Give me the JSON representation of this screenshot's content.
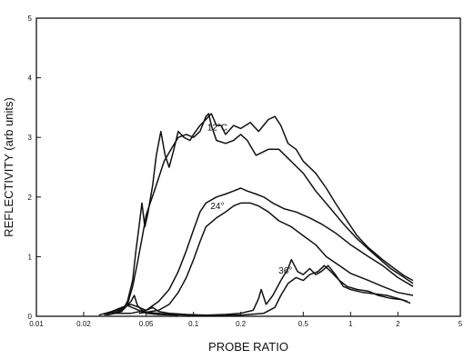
{
  "chart_data": {
    "type": "line",
    "xlabel": "PROBE RATIO",
    "ylabel": "REFLECTIVITY  (arb units)",
    "xscale": "log",
    "xlim": [
      0.01,
      5
    ],
    "ylim": [
      0,
      5
    ],
    "grid": false,
    "x_ticks": [
      {
        "value": 0.01,
        "label": "0.01"
      },
      {
        "value": 0.02,
        "label": "0.02"
      },
      {
        "value": 0.05,
        "label": "0.05"
      },
      {
        "value": 0.1,
        "label": "0.1"
      },
      {
        "value": 0.2,
        "label": "0.2"
      },
      {
        "value": 0.5,
        "label": "0.5"
      },
      {
        "value": 1,
        "label": "1"
      },
      {
        "value": 2,
        "label": "2"
      },
      {
        "value": 5,
        "label": "5"
      }
    ],
    "y_ticks": [
      {
        "value": 0,
        "label": "0"
      },
      {
        "value": 1,
        "label": "1"
      },
      {
        "value": 2,
        "label": "2"
      },
      {
        "value": 3,
        "label": "3"
      },
      {
        "value": 4,
        "label": "4"
      },
      {
        "value": 5,
        "label": "5"
      }
    ],
    "annotations": [
      {
        "text": "12°C",
        "x": 0.142,
        "y": 3.12
      },
      {
        "text": "24°",
        "x": 0.142,
        "y": 1.8
      },
      {
        "text": "36°",
        "x": 0.385,
        "y": 0.72
      }
    ],
    "series": [
      {
        "points": [
          [
            0.03,
            0.05
          ],
          [
            0.035,
            0.08
          ],
          [
            0.038,
            0.25
          ],
          [
            0.041,
            0.6
          ],
          [
            0.043,
            1.1
          ],
          [
            0.045,
            1.5
          ],
          [
            0.047,
            1.9
          ],
          [
            0.049,
            1.5
          ],
          [
            0.051,
            1.7
          ],
          [
            0.055,
            2.2
          ],
          [
            0.058,
            2.7
          ],
          [
            0.062,
            3.1
          ],
          [
            0.066,
            2.7
          ],
          [
            0.07,
            2.5
          ],
          [
            0.075,
            2.8
          ],
          [
            0.08,
            3.1
          ],
          [
            0.087,
            3.0
          ],
          [
            0.095,
            2.95
          ],
          [
            0.1,
            3.05
          ],
          [
            0.11,
            3.2
          ],
          [
            0.12,
            3.3
          ],
          [
            0.13,
            3.4
          ],
          [
            0.14,
            3.2
          ],
          [
            0.15,
            3.2
          ],
          [
            0.16,
            3.05
          ],
          [
            0.18,
            3.2
          ],
          [
            0.2,
            3.15
          ],
          [
            0.23,
            3.25
          ],
          [
            0.26,
            3.1
          ],
          [
            0.3,
            3.3
          ],
          [
            0.33,
            3.35
          ],
          [
            0.36,
            3.2
          ],
          [
            0.4,
            2.9
          ],
          [
            0.45,
            2.8
          ],
          [
            0.5,
            2.6
          ],
          [
            0.6,
            2.4
          ],
          [
            0.7,
            2.15
          ],
          [
            0.8,
            1.9
          ],
          [
            0.95,
            1.6
          ],
          [
            1.1,
            1.35
          ],
          [
            1.3,
            1.15
          ],
          [
            1.6,
            0.95
          ],
          [
            1.9,
            0.8
          ],
          [
            2.2,
            0.68
          ],
          [
            2.5,
            0.6
          ]
        ]
      },
      {
        "points": [
          [
            0.032,
            0.05
          ],
          [
            0.038,
            0.2
          ],
          [
            0.041,
            0.5
          ],
          [
            0.044,
            0.9
          ],
          [
            0.047,
            1.3
          ],
          [
            0.05,
            1.7
          ],
          [
            0.053,
            1.9
          ],
          [
            0.058,
            2.2
          ],
          [
            0.065,
            2.6
          ],
          [
            0.072,
            2.8
          ],
          [
            0.08,
            3.0
          ],
          [
            0.09,
            3.05
          ],
          [
            0.1,
            3.0
          ],
          [
            0.11,
            3.1
          ],
          [
            0.12,
            3.35
          ],
          [
            0.125,
            3.4
          ],
          [
            0.13,
            3.2
          ],
          [
            0.14,
            2.95
          ],
          [
            0.16,
            2.9
          ],
          [
            0.18,
            2.95
          ],
          [
            0.2,
            3.05
          ],
          [
            0.22,
            2.95
          ],
          [
            0.25,
            2.7
          ],
          [
            0.3,
            2.8
          ],
          [
            0.35,
            2.8
          ],
          [
            0.4,
            2.65
          ],
          [
            0.5,
            2.4
          ],
          [
            0.6,
            2.1
          ],
          [
            0.75,
            1.8
          ],
          [
            0.9,
            1.55
          ],
          [
            1.1,
            1.3
          ],
          [
            1.4,
            1.05
          ],
          [
            1.8,
            0.8
          ],
          [
            2.2,
            0.65
          ],
          [
            2.5,
            0.55
          ]
        ]
      },
      {
        "points": [
          [
            0.03,
            0.05
          ],
          [
            0.04,
            0.05
          ],
          [
            0.05,
            0.1
          ],
          [
            0.06,
            0.25
          ],
          [
            0.07,
            0.45
          ],
          [
            0.08,
            0.75
          ],
          [
            0.09,
            1.1
          ],
          [
            0.1,
            1.45
          ],
          [
            0.11,
            1.75
          ],
          [
            0.12,
            1.9
          ],
          [
            0.14,
            2.0
          ],
          [
            0.16,
            2.05
          ],
          [
            0.18,
            2.1
          ],
          [
            0.2,
            2.15
          ],
          [
            0.22,
            2.1
          ],
          [
            0.25,
            2.05
          ],
          [
            0.28,
            2.0
          ],
          [
            0.32,
            1.9
          ],
          [
            0.38,
            1.8
          ],
          [
            0.45,
            1.75
          ],
          [
            0.55,
            1.65
          ],
          [
            0.65,
            1.55
          ],
          [
            0.8,
            1.4
          ],
          [
            1.0,
            1.2
          ],
          [
            1.3,
            1.0
          ],
          [
            1.6,
            0.85
          ],
          [
            2.0,
            0.65
          ],
          [
            2.5,
            0.5
          ]
        ]
      },
      {
        "points": [
          [
            0.045,
            0.05
          ],
          [
            0.06,
            0.1
          ],
          [
            0.07,
            0.2
          ],
          [
            0.08,
            0.4
          ],
          [
            0.09,
            0.65
          ],
          [
            0.1,
            0.95
          ],
          [
            0.11,
            1.25
          ],
          [
            0.12,
            1.5
          ],
          [
            0.14,
            1.65
          ],
          [
            0.16,
            1.75
          ],
          [
            0.18,
            1.85
          ],
          [
            0.2,
            1.9
          ],
          [
            0.23,
            1.9
          ],
          [
            0.26,
            1.85
          ],
          [
            0.3,
            1.75
          ],
          [
            0.35,
            1.6
          ],
          [
            0.42,
            1.5
          ],
          [
            0.5,
            1.35
          ],
          [
            0.6,
            1.2
          ],
          [
            0.7,
            1.0
          ],
          [
            0.85,
            0.85
          ],
          [
            1.0,
            0.72
          ],
          [
            1.3,
            0.6
          ],
          [
            1.6,
            0.5
          ],
          [
            2.0,
            0.4
          ],
          [
            2.5,
            0.35
          ]
        ]
      },
      {
        "points": [
          [
            0.12,
            0.02
          ],
          [
            0.16,
            0.03
          ],
          [
            0.2,
            0.05
          ],
          [
            0.24,
            0.1
          ],
          [
            0.26,
            0.3
          ],
          [
            0.27,
            0.45
          ],
          [
            0.29,
            0.2
          ],
          [
            0.32,
            0.35
          ],
          [
            0.36,
            0.6
          ],
          [
            0.4,
            0.8
          ],
          [
            0.42,
            0.95
          ],
          [
            0.46,
            0.75
          ],
          [
            0.5,
            0.7
          ],
          [
            0.55,
            0.8
          ],
          [
            0.6,
            0.7
          ],
          [
            0.65,
            0.75
          ],
          [
            0.72,
            0.85
          ],
          [
            0.8,
            0.7
          ],
          [
            0.9,
            0.5
          ],
          [
            1.0,
            0.45
          ],
          [
            1.2,
            0.4
          ],
          [
            1.4,
            0.38
          ],
          [
            1.7,
            0.35
          ],
          [
            2.0,
            0.3
          ],
          [
            2.3,
            0.25
          ]
        ]
      },
      {
        "points": [
          [
            0.2,
            0.02
          ],
          [
            0.28,
            0.05
          ],
          [
            0.33,
            0.15
          ],
          [
            0.36,
            0.35
          ],
          [
            0.4,
            0.55
          ],
          [
            0.45,
            0.65
          ],
          [
            0.5,
            0.6
          ],
          [
            0.55,
            0.7
          ],
          [
            0.62,
            0.75
          ],
          [
            0.68,
            0.85
          ],
          [
            0.75,
            0.75
          ],
          [
            0.85,
            0.6
          ],
          [
            0.95,
            0.5
          ],
          [
            1.1,
            0.45
          ],
          [
            1.3,
            0.42
          ],
          [
            1.5,
            0.35
          ],
          [
            1.8,
            0.3
          ],
          [
            2.1,
            0.28
          ],
          [
            2.4,
            0.22
          ]
        ]
      },
      {
        "points": [
          [
            0.025,
            0.02
          ],
          [
            0.03,
            0.08
          ],
          [
            0.035,
            0.15
          ],
          [
            0.04,
            0.2
          ],
          [
            0.045,
            0.15
          ],
          [
            0.05,
            0.1
          ],
          [
            0.055,
            0.15
          ],
          [
            0.06,
            0.08
          ],
          [
            0.07,
            0.05
          ],
          [
            0.09,
            0.03
          ],
          [
            0.12,
            0.02
          ],
          [
            0.2,
            0.02
          ]
        ]
      },
      {
        "points": [
          [
            0.028,
            0.02
          ],
          [
            0.032,
            0.05
          ],
          [
            0.036,
            0.12
          ],
          [
            0.04,
            0.25
          ],
          [
            0.042,
            0.35
          ],
          [
            0.044,
            0.18
          ],
          [
            0.048,
            0.08
          ],
          [
            0.055,
            0.06
          ],
          [
            0.065,
            0.04
          ],
          [
            0.09,
            0.02
          ],
          [
            0.15,
            0.02
          ]
        ]
      },
      {
        "points": [
          [
            0.027,
            0.02
          ],
          [
            0.033,
            0.1
          ],
          [
            0.038,
            0.18
          ],
          [
            0.043,
            0.12
          ],
          [
            0.05,
            0.05
          ],
          [
            0.06,
            0.03
          ],
          [
            0.08,
            0.02
          ]
        ]
      }
    ]
  }
}
